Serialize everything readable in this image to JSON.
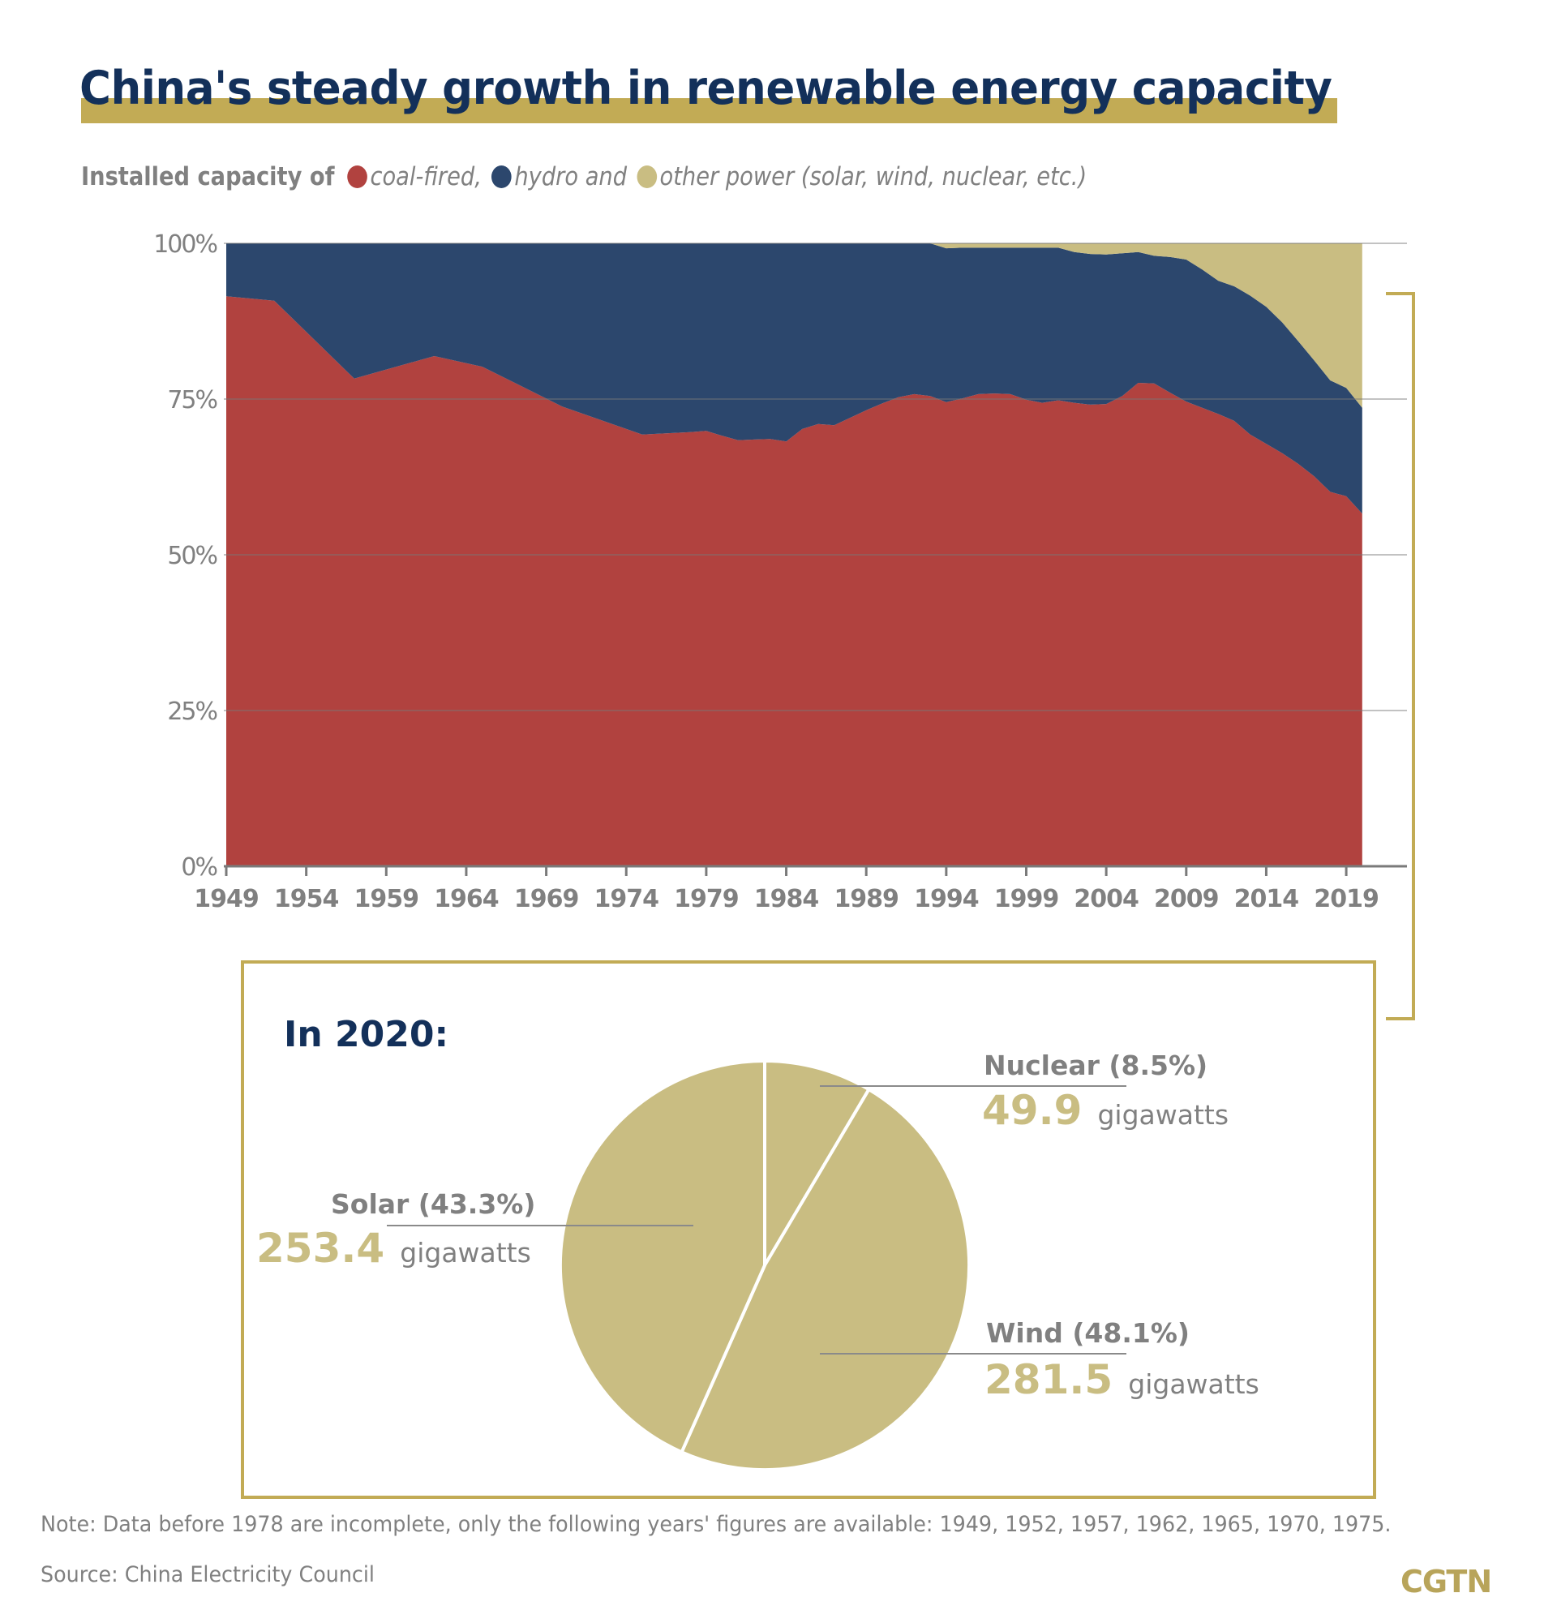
{
  "header": {
    "title": "China's steady growth in renewable energy capacity",
    "subtitle_lead": "Installed capacity of",
    "legend": [
      {
        "label": "coal-fired,",
        "color": "#b1423f",
        "icon": "circle-dot-icon"
      },
      {
        "label": "hydro and",
        "color": "#2c476d",
        "icon": "circle-dot-icon"
      },
      {
        "label": "other power (solar, wind, nuclear, etc.)",
        "color": "#c9bd82",
        "icon": "circle-dot-icon"
      }
    ]
  },
  "colors": {
    "title": "#13305a",
    "accent_gold": "#c2ab55",
    "coal": "#b1423f",
    "hydro": "#2c476d",
    "other": "#c9bd82",
    "text_gray": "#808080"
  },
  "chart_data": [
    {
      "type": "area",
      "stacked": true,
      "percent": true,
      "title": "",
      "xlabel": "",
      "ylabel": "",
      "ylim": [
        0,
        100
      ],
      "xlim": [
        1949,
        2020
      ],
      "y_ticks": [
        "0%",
        "25%",
        "50%",
        "75%",
        "100%"
      ],
      "y_tick_values": [
        0,
        25,
        50,
        75,
        100
      ],
      "x_ticks": [
        "1949",
        "1954",
        "1959",
        "1964",
        "1969",
        "1974",
        "1979",
        "1984",
        "1989",
        "1994",
        "1999",
        "2004",
        "2009",
        "2014",
        "2019"
      ],
      "grid": true,
      "x": [
        1949,
        1952,
        1957,
        1962,
        1965,
        1970,
        1975,
        1978,
        1979,
        1980,
        1981,
        1982,
        1983,
        1984,
        1985,
        1986,
        1987,
        1988,
        1989,
        1990,
        1991,
        1992,
        1993,
        1994,
        1995,
        1996,
        1997,
        1998,
        1999,
        2000,
        2001,
        2002,
        2003,
        2004,
        2005,
        2006,
        2007,
        2008,
        2009,
        2010,
        2011,
        2012,
        2013,
        2014,
        2015,
        2016,
        2017,
        2018,
        2019,
        2020
      ],
      "series": [
        {
          "name": "coal-fired",
          "values": [
            91.5,
            90.8,
            78.3,
            81.9,
            80.2,
            73.8,
            69.3,
            69.7,
            69.9,
            69.1,
            68.4,
            68.5,
            68.6,
            68.2,
            70.2,
            71.0,
            70.8,
            72.0,
            73.2,
            74.3,
            75.3,
            75.8,
            75.5,
            74.5,
            75.1,
            75.8,
            75.9,
            75.8,
            74.9,
            74.4,
            74.8,
            74.4,
            74.1,
            74.2,
            75.5,
            77.6,
            77.5,
            76.0,
            74.6,
            73.6,
            72.6,
            71.5,
            69.3,
            67.8,
            66.3,
            64.6,
            62.6,
            60.1,
            59.4,
            56.6
          ]
        },
        {
          "name": "hydro",
          "values": [
            8.5,
            9.2,
            21.7,
            18.1,
            19.8,
            26.2,
            30.7,
            30.3,
            30.1,
            30.9,
            31.6,
            31.5,
            31.4,
            31.8,
            29.8,
            29.0,
            29.2,
            28.0,
            26.8,
            25.7,
            24.7,
            24.2,
            24.5,
            24.7,
            24.2,
            23.5,
            23.4,
            23.5,
            24.4,
            24.9,
            24.5,
            24.2,
            24.2,
            24.0,
            22.9,
            21.0,
            20.5,
            21.8,
            22.8,
            22.2,
            21.4,
            21.6,
            22.3,
            22.0,
            21.0,
            19.7,
            18.6,
            17.9,
            17.4,
            17.0
          ]
        },
        {
          "name": "other power (solar, wind, nuclear, etc.)",
          "values": [
            0,
            0,
            0,
            0,
            0,
            0,
            0,
            0,
            0,
            0,
            0,
            0,
            0,
            0,
            0,
            0,
            0,
            0,
            0,
            0,
            0,
            0,
            0,
            0.8,
            0.7,
            0.7,
            0.7,
            0.7,
            0.7,
            0.7,
            0.7,
            1.4,
            1.7,
            1.8,
            1.6,
            1.4,
            2.0,
            2.2,
            2.6,
            4.2,
            6.0,
            6.9,
            8.4,
            10.2,
            12.7,
            15.7,
            18.8,
            22.0,
            23.2,
            26.4
          ]
        }
      ]
    },
    {
      "type": "pie",
      "title": "In 2020:",
      "unit": "gigawatts",
      "slices": [
        {
          "name": "Nuclear",
          "percent_label": "(8.5%)",
          "percent": 8.5,
          "value": "49.9"
        },
        {
          "name": "Wind",
          "percent_label": "(48.1%)",
          "percent": 48.1,
          "value": "281.5"
        },
        {
          "name": "Solar",
          "percent_label": "(43.3%)",
          "percent": 43.3,
          "value": "253.4"
        }
      ]
    }
  ],
  "footer": {
    "note": "Note: Data before 1978 are incomplete, only the following years' figures are available: 1949, 1952, 1957, 1962, 1965, 1970, 1975.",
    "source": "Source: China Electricity Council",
    "logo": "CGTN"
  }
}
